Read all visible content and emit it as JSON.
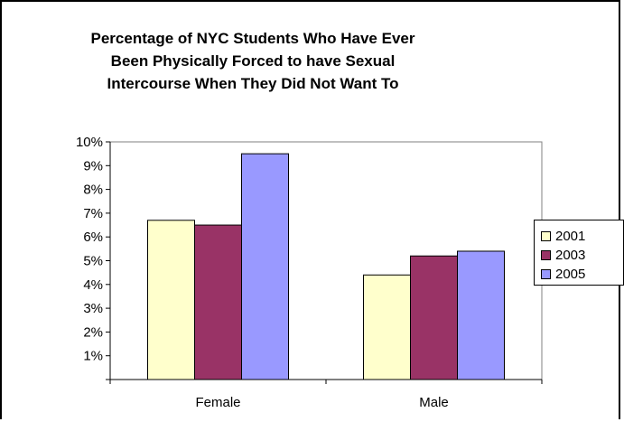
{
  "chart_data": {
    "type": "bar",
    "title_lines": [
      "Percentage of NYC Students Who Have Ever",
      "Been Physically Forced to have Sexual",
      "Intercourse When They Did Not Want To"
    ],
    "categories": [
      "Female",
      "Male"
    ],
    "series": [
      {
        "name": "2001",
        "color": "#FFFFCC",
        "values": [
          6.7,
          4.4
        ]
      },
      {
        "name": "2003",
        "color": "#993366",
        "values": [
          6.5,
          5.2
        ]
      },
      {
        "name": "2005",
        "color": "#9999FF",
        "values": [
          9.5,
          5.4
        ]
      }
    ],
    "y_ticks": [
      "1%",
      "2%",
      "3%",
      "4%",
      "5%",
      "6%",
      "7%",
      "8%",
      "9%",
      "10%"
    ],
    "ylim": [
      0,
      10
    ],
    "y_unit": "%",
    "grid": false,
    "legend_position": "right"
  }
}
